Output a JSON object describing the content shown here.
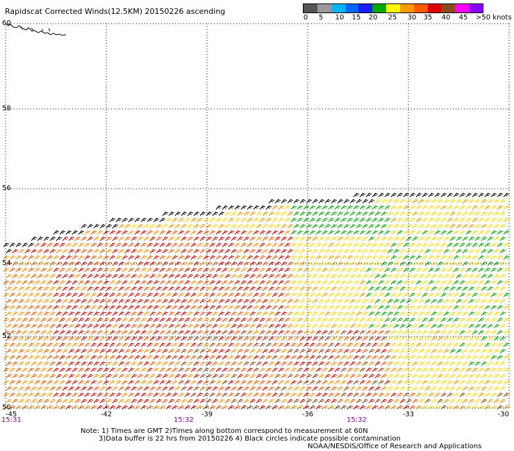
{
  "title": "Rapidscat Corrected Winds(12.5KM) 20150226 ascending",
  "scale": {
    "colors": [
      "#555555",
      "#9a9a9a",
      "#00b7ff",
      "#0066ff",
      "#1b1bff",
      "#00aa00",
      "#ffff00",
      "#ff9900",
      "#ff5a00",
      "#dd0000",
      "#8a4a1f",
      "#ff00ff",
      "#8a00ff"
    ],
    "ticks": [
      "0",
      "5",
      "10",
      "15",
      "20",
      "25",
      "30",
      "35",
      "40",
      "45",
      ">50 knots"
    ]
  },
  "map": {
    "lat_labels": [
      "60",
      "58",
      "56",
      "54",
      "52",
      "50"
    ],
    "lon_labels": [
      "-45",
      "-42",
      "-39",
      "-36",
      "-33",
      "-30"
    ],
    "time_labels": [
      "15:31",
      "15:32",
      "15:32"
    ],
    "time_color": "#8800aa",
    "grid_color": "#000000"
  },
  "notes": {
    "line1": "Note: 1) Times are GMT 2)Times along bottom correspond to measurement at 60N",
    "line2": "3)Data buffer is 22 hrs from 20150226 4) Black circles indicate possible contamination"
  },
  "credit": "NOAA/NESDIS/Office of Research and Applications"
}
